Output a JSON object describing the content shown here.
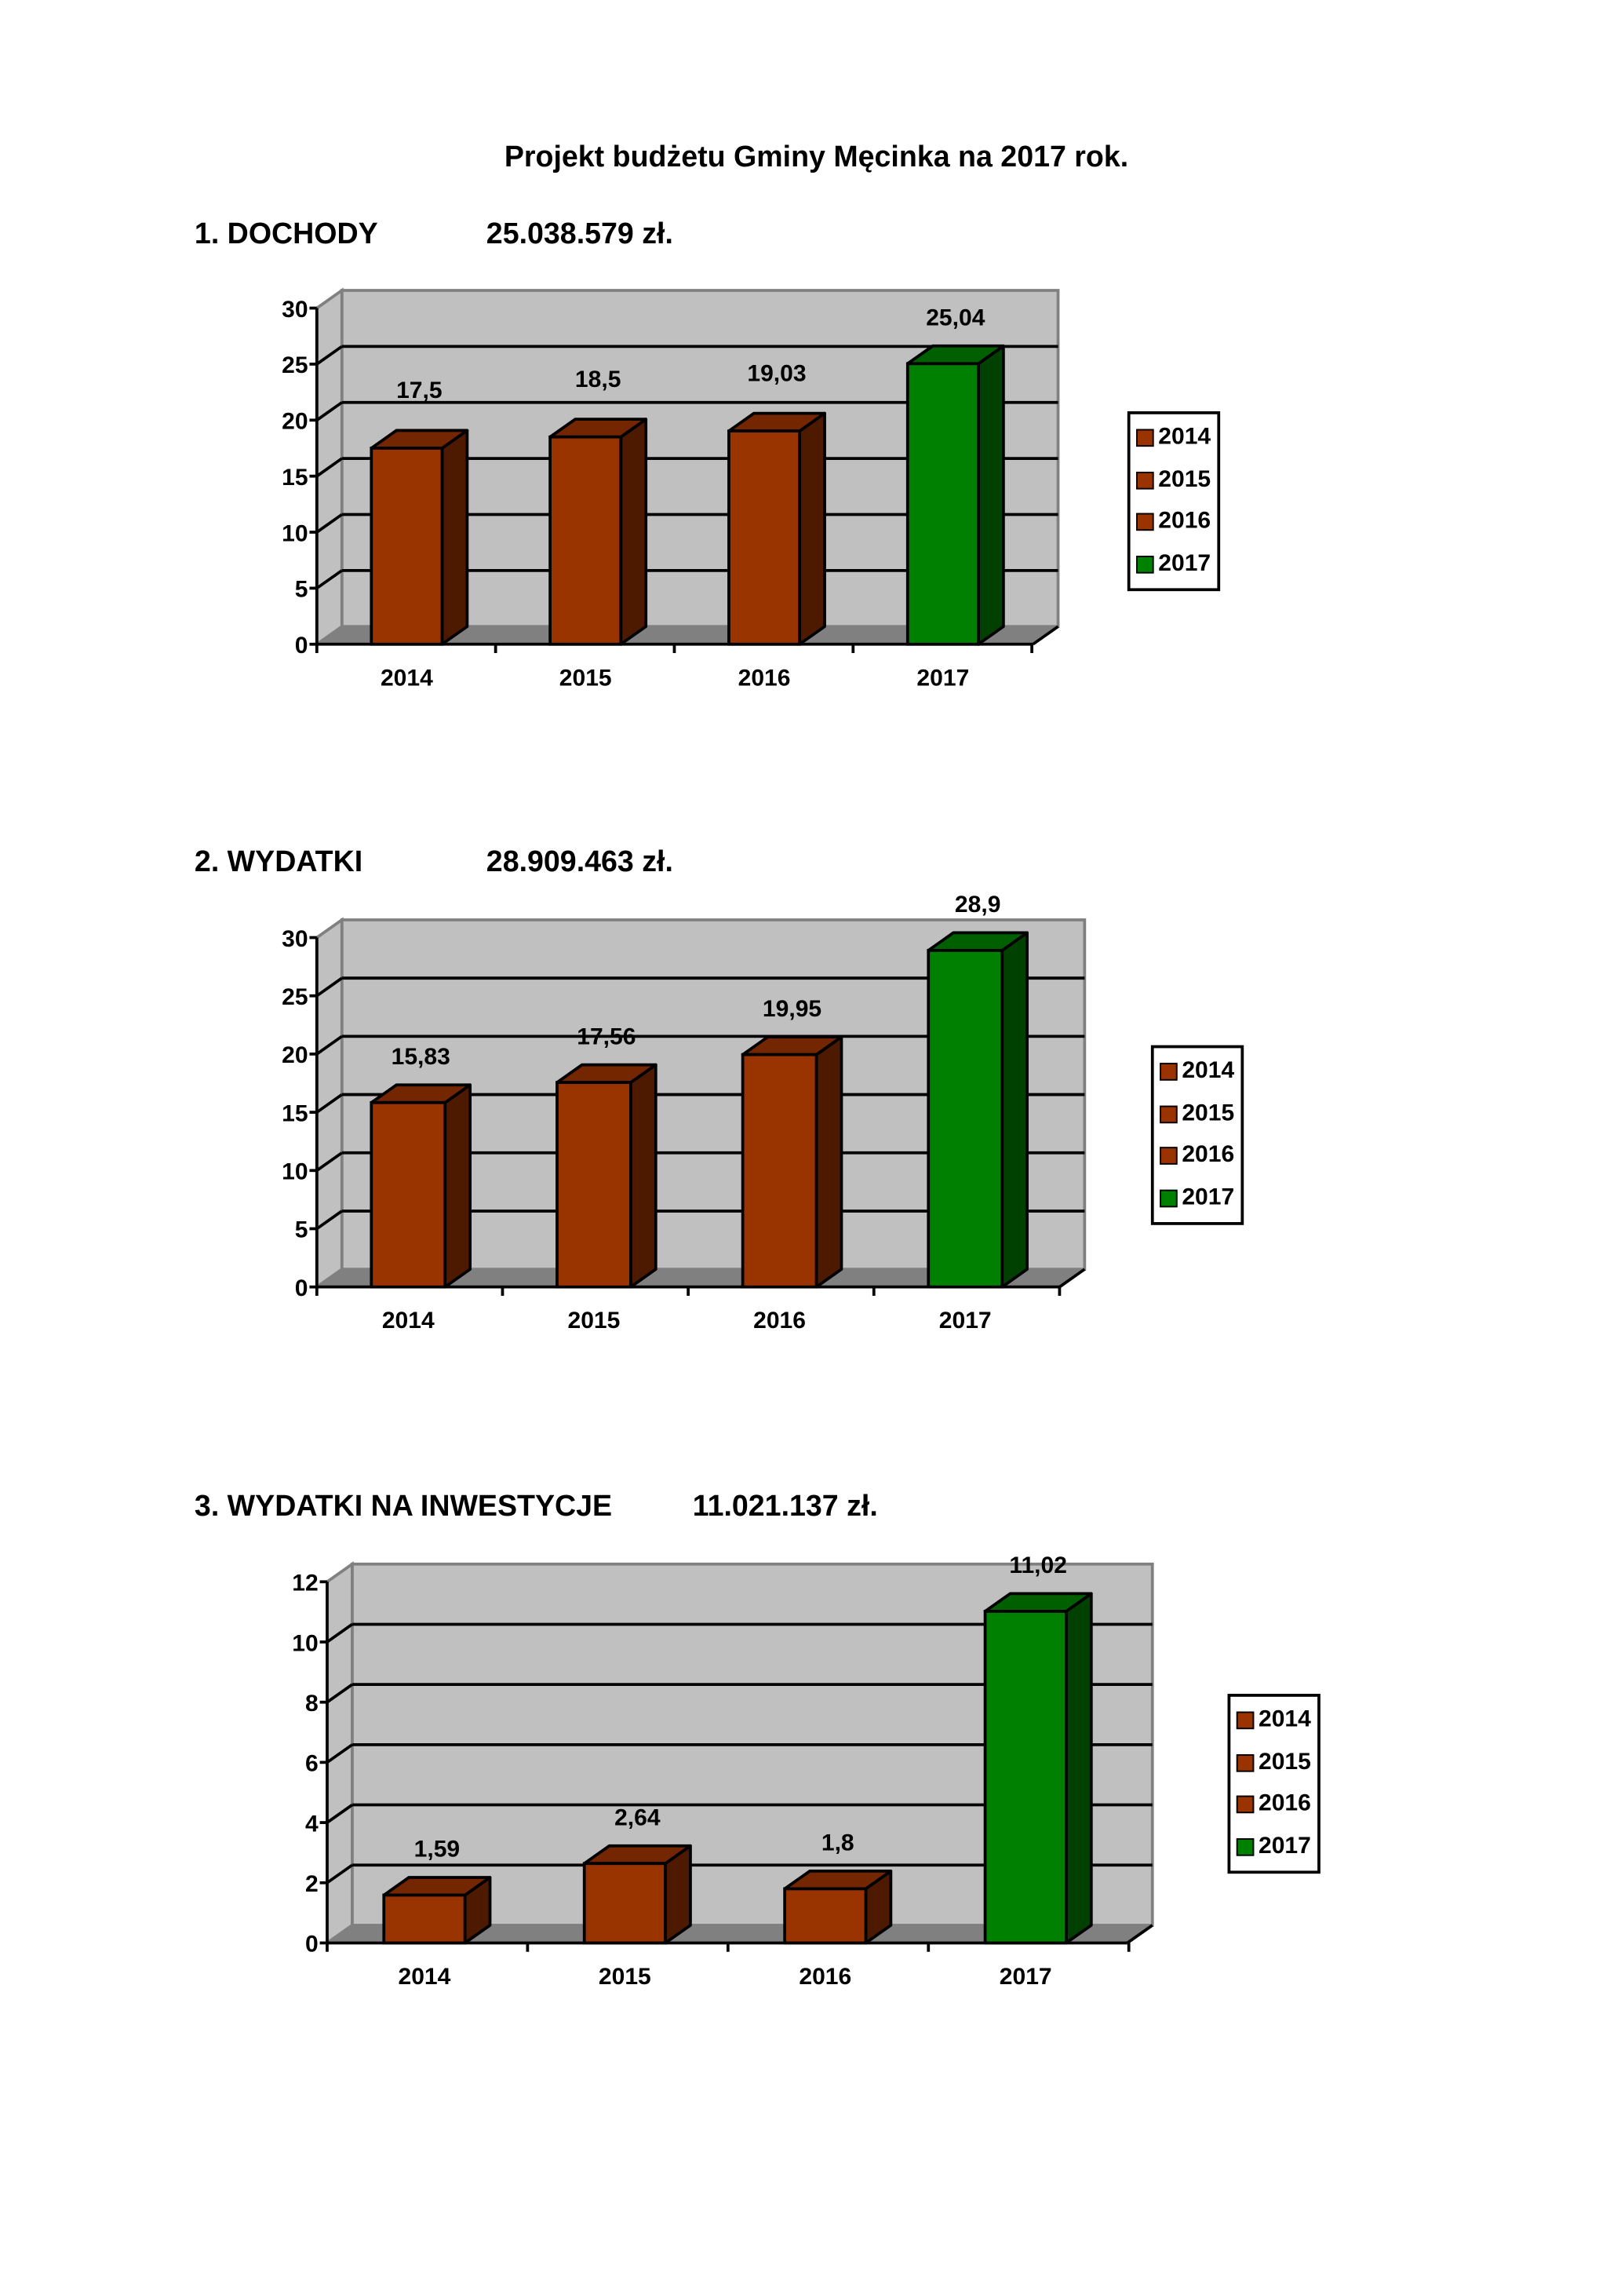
{
  "title": "Projekt budżetu Gminy Męcinka na 2017 rok.",
  "sections": [
    {
      "heading": "1. DOCHODY",
      "amount": "25.038.579 zł."
    },
    {
      "heading": "2. WYDATKI",
      "amount": "28.909.463 zł."
    },
    {
      "heading": "3. WYDATKI NA INWESTYCJE",
      "amount": "11.021.137 zł."
    }
  ],
  "colors": {
    "brown": "#993300",
    "green": "#008000",
    "wall": "#c0c0c0",
    "floor": "#808080"
  },
  "chart_data": [
    {
      "type": "bar",
      "title": "1. DOCHODY",
      "categories": [
        "2014",
        "2015",
        "2016",
        "2017"
      ],
      "values": [
        17.5,
        18.5,
        19.03,
        25.04
      ],
      "labels": [
        "17,5",
        "18,5",
        "19,03",
        "25,04"
      ],
      "ylim": [
        0,
        30
      ],
      "yticks": [
        "0",
        "5",
        "10",
        "15",
        "20",
        "25",
        "30"
      ],
      "legend": [
        "2014",
        "2015",
        "2016",
        "2017"
      ],
      "legend_position": "right",
      "grid": true
    },
    {
      "type": "bar",
      "title": "2. WYDATKI",
      "categories": [
        "2014",
        "2015",
        "2016",
        "2017"
      ],
      "values": [
        15.83,
        17.56,
        19.95,
        28.9
      ],
      "labels": [
        "15,83",
        "17,56",
        "19,95",
        "28,9"
      ],
      "ylim": [
        0,
        30
      ],
      "yticks": [
        "0",
        "5",
        "10",
        "15",
        "20",
        "25",
        "30"
      ],
      "legend": [
        "2014",
        "2015",
        "2016",
        "2017"
      ],
      "legend_position": "right",
      "grid": true
    },
    {
      "type": "bar",
      "title": "3. WYDATKI NA INWESTYCJE",
      "categories": [
        "2014",
        "2015",
        "2016",
        "2017"
      ],
      "values": [
        1.59,
        2.64,
        1.8,
        11.02
      ],
      "labels": [
        "1,59",
        "2,64",
        "1,8",
        "11,02"
      ],
      "ylim": [
        0,
        12
      ],
      "yticks": [
        "0",
        "2",
        "4",
        "6",
        "8",
        "10",
        "12"
      ],
      "legend": [
        "2014",
        "2015",
        "2016",
        "2017"
      ],
      "legend_position": "right",
      "grid": true
    }
  ]
}
